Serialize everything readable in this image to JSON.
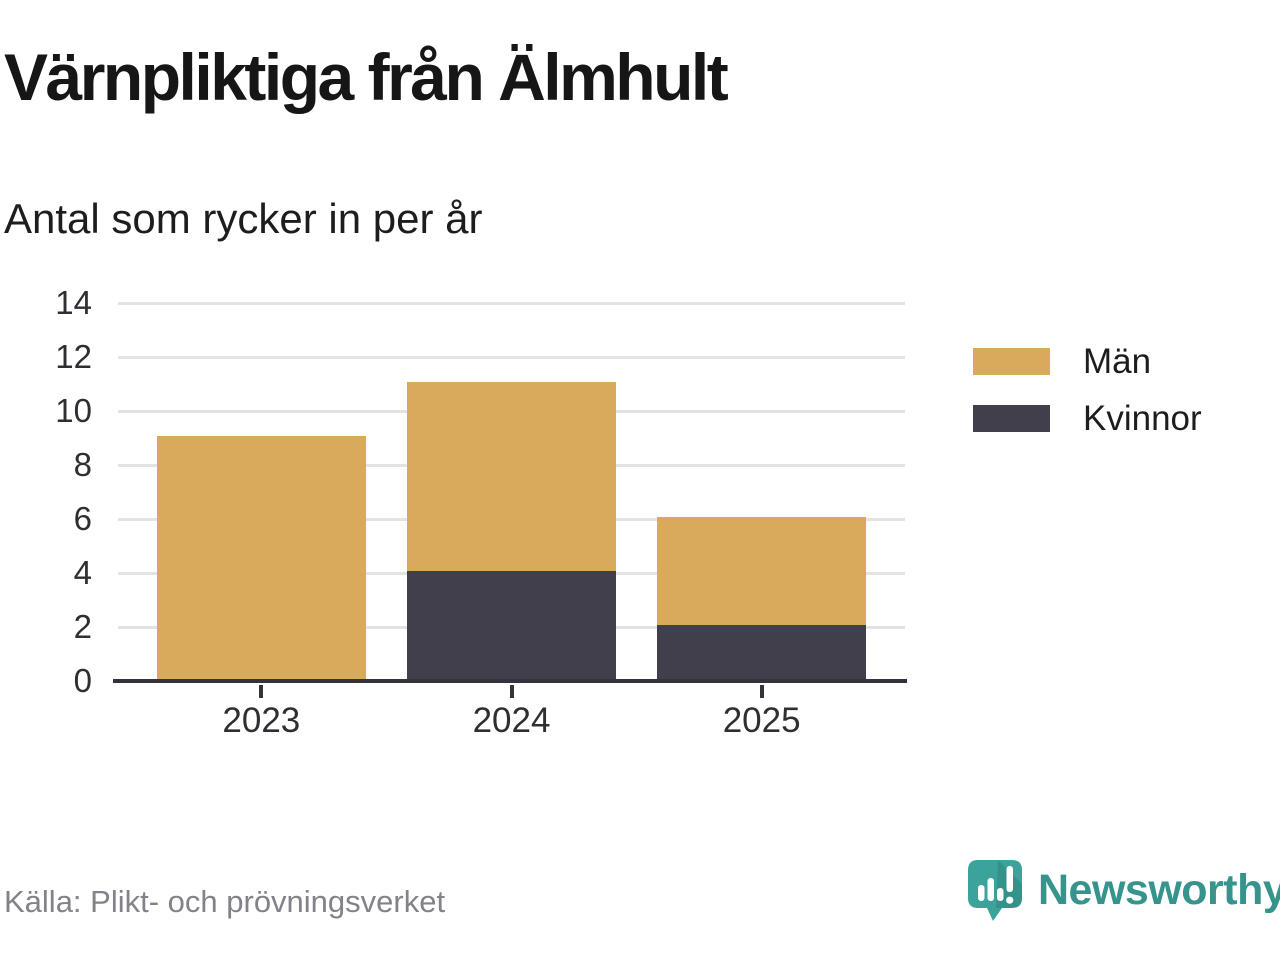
{
  "title": "Värnpliktiga från Älmhult",
  "subtitle": "Antal som rycker in per år",
  "source": "Källa: Plikt- och prövningsverket",
  "brand": {
    "name": "Newsworthy",
    "icon": "newsworthy-speech-bubble-bar-chart-icon",
    "icon_color": "#3BA39A",
    "wordmark_color": "#36948D"
  },
  "chart_data": {
    "type": "bar",
    "stacked": true,
    "title": "Värnpliktiga från Älmhult",
    "subtitle": "Antal som rycker in per år",
    "categories": [
      "2023",
      "2024",
      "2025"
    ],
    "series": [
      {
        "name": "Män",
        "color": "#D9A95C",
        "values": [
          9,
          7,
          4
        ]
      },
      {
        "name": "Kvinnor",
        "color": "#423F4D",
        "values": [
          0,
          4,
          2
        ]
      }
    ],
    "stack_order": [
      "Kvinnor",
      "Män"
    ],
    "totals": [
      9,
      11,
      6
    ],
    "xlabel": "",
    "ylabel": "",
    "ylim": [
      0,
      14
    ],
    "yticks": [
      0,
      2,
      4,
      6,
      8,
      10,
      12,
      14
    ],
    "grid": "horizontal",
    "grid_color": "#E3E3E3",
    "axis_color": "#35323C",
    "legend_position": "right"
  }
}
